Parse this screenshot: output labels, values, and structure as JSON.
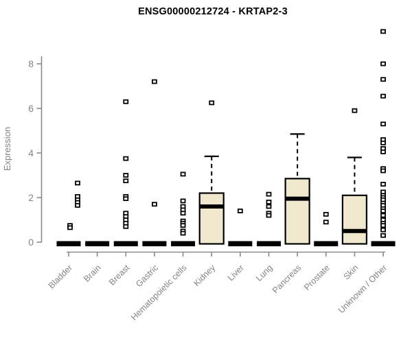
{
  "page": {
    "background": "#ffffff"
  },
  "chart_data": {
    "type": "box",
    "title": "ENSG00000212724 - KRTAP2-3",
    "xlabel": "",
    "ylabel": "Expression",
    "ylim": [
      0,
      9.6
    ],
    "yticks": [
      0,
      2,
      4,
      6,
      8
    ],
    "grid": false,
    "legend": "none",
    "colors": {
      "box_fill": "#efe8ce",
      "box_border": "#000000",
      "median": "#000000",
      "whisker": "#000000",
      "outlier_border": "#000000",
      "outlier_fill": "#ffffff",
      "zero_bar": "#000000",
      "axis": "#8a8a8a",
      "tick_label": "#848484",
      "title": "#000000"
    },
    "categories": [
      {
        "label": "Bladder",
        "box": {
          "q1": 0,
          "median": 0,
          "q3": 0,
          "whisker_high": 0
        },
        "outliers": [
          2.65,
          2.05,
          1.9,
          1.78,
          1.65,
          0.75,
          0.65
        ],
        "outlier_dx": [
          13,
          13,
          13,
          13,
          13,
          2,
          2
        ]
      },
      {
        "label": "Brain",
        "box": {
          "q1": 0,
          "median": 0,
          "q3": 0,
          "whisker_high": 0
        },
        "outliers": []
      },
      {
        "label": "Breast",
        "box": {
          "q1": 0,
          "median": 0,
          "q3": 0,
          "whisker_high": 0
        },
        "outliers": [
          6.3,
          3.75,
          3.0,
          2.75,
          2.05,
          1.95,
          1.3,
          1.15,
          1.0,
          0.85,
          0.7
        ]
      },
      {
        "label": "Gastric",
        "box": {
          "q1": 0,
          "median": 0,
          "q3": 0,
          "whisker_high": 0
        },
        "outliers": [
          7.2,
          1.7
        ]
      },
      {
        "label": "Hematopoietic cells",
        "box": {
          "q1": 0,
          "median": 0,
          "q3": 0,
          "whisker_high": 0
        },
        "outliers": [
          3.05,
          1.85,
          1.6,
          1.45,
          1.3,
          0.95,
          0.85,
          0.75,
          0.5,
          0.4
        ]
      },
      {
        "label": "Kidney",
        "box": {
          "q1": 0,
          "median": 1.6,
          "q3": 2.2,
          "whisker_high": 3.85
        },
        "outliers": [
          6.25
        ]
      },
      {
        "label": "Liver",
        "box": {
          "q1": 0,
          "median": 0,
          "q3": 0,
          "whisker_high": 0
        },
        "outliers": [
          1.4
        ]
      },
      {
        "label": "Lung",
        "box": {
          "q1": 0,
          "median": 0,
          "q3": 0,
          "whisker_high": 0
        },
        "outliers": [
          2.15,
          1.8,
          1.6,
          1.3,
          1.2
        ]
      },
      {
        "label": "Pancreas",
        "box": {
          "q1": 0,
          "median": 1.95,
          "q3": 2.85,
          "whisker_high": 4.85
        },
        "outliers": []
      },
      {
        "label": "Prostate",
        "box": {
          "q1": 0,
          "median": 0,
          "q3": 0,
          "whisker_high": 0
        },
        "outliers": [
          1.25,
          0.9
        ]
      },
      {
        "label": "Skin",
        "box": {
          "q1": 0,
          "median": 0.5,
          "q3": 2.1,
          "whisker_high": 3.8
        },
        "outliers": [
          5.9
        ]
      },
      {
        "label": "Unknown / Other",
        "box": {
          "q1": 0,
          "median": 0,
          "q3": 0,
          "whisker_high": 0
        },
        "outliers": [
          9.45,
          8.0,
          7.3,
          6.55,
          5.3,
          4.6,
          4.45,
          4.2,
          4.05,
          3.3,
          3.2,
          2.6,
          2.25,
          2.1,
          2.0,
          1.9,
          1.75,
          1.65,
          1.5,
          1.4,
          1.2,
          1.0,
          0.85,
          0.75,
          0.55,
          0.3
        ]
      }
    ]
  }
}
